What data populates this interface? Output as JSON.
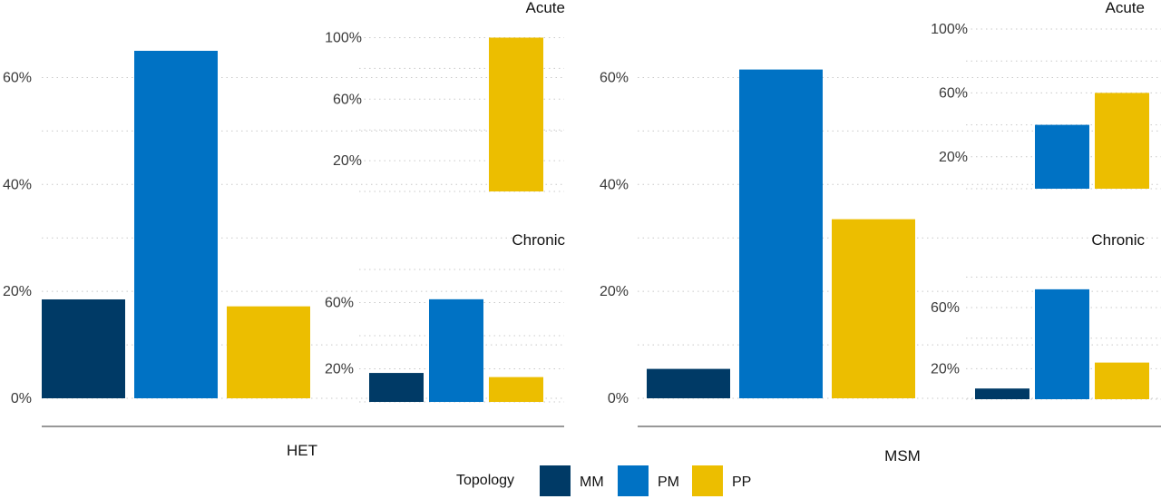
{
  "colors": {
    "MM": "#003a66",
    "PM": "#0072c4",
    "PP": "#ecbe00",
    "grid": "#c9c9c9",
    "axis": "#5a5a5a"
  },
  "legend": {
    "title": "Topology",
    "items": [
      "MM",
      "PM",
      "PP"
    ]
  },
  "groups": [
    "HET",
    "MSM"
  ],
  "chart_data": [
    {
      "type": "bar",
      "group": "HET",
      "panel": "overall",
      "title": "",
      "categories": [
        "MM",
        "PM",
        "PP"
      ],
      "values": [
        18.5,
        65,
        17.2
      ],
      "ylim": [
        0,
        65
      ],
      "yticks": [
        0,
        20,
        40,
        60
      ],
      "tick_labels": [
        "0%",
        "20%",
        "40%",
        "60%"
      ],
      "grid": true
    },
    {
      "type": "bar",
      "group": "HET",
      "panel": "Acute",
      "title": "Acute",
      "categories": [
        "MM",
        "PM",
        "PP"
      ],
      "values": [
        0,
        0,
        100
      ],
      "ylim": [
        0,
        105
      ],
      "yticks": [
        20,
        60,
        100
      ],
      "tick_labels": [
        "20%",
        "60%",
        "100%"
      ],
      "grid": true
    },
    {
      "type": "bar",
      "group": "HET",
      "panel": "Chronic",
      "title": "Chronic",
      "categories": [
        "MM",
        "PM",
        "PP"
      ],
      "values": [
        17.5,
        62,
        15
      ],
      "ylim": [
        0,
        80
      ],
      "yticks": [
        20,
        60
      ],
      "tick_labels": [
        "20%",
        "60%"
      ],
      "grid": true
    },
    {
      "type": "bar",
      "group": "MSM",
      "panel": "overall",
      "title": "",
      "categories": [
        "MM",
        "PM",
        "PP"
      ],
      "values": [
        5.5,
        61.5,
        33.5
      ],
      "ylim": [
        0,
        65
      ],
      "yticks": [
        0,
        20,
        40,
        60
      ],
      "tick_labels": [
        "0%",
        "20%",
        "40%",
        "60%"
      ],
      "grid": true
    },
    {
      "type": "bar",
      "group": "MSM",
      "panel": "Acute",
      "title": "Acute",
      "categories": [
        "MM",
        "PM",
        "PP"
      ],
      "values": [
        0,
        40,
        60
      ],
      "ylim": [
        0,
        100
      ],
      "yticks": [
        20,
        60,
        100
      ],
      "tick_labels": [
        "20%",
        "60%",
        "100%"
      ],
      "grid": true
    },
    {
      "type": "bar",
      "group": "MSM",
      "panel": "Chronic",
      "title": "Chronic",
      "categories": [
        "MM",
        "PM",
        "PP"
      ],
      "values": [
        7,
        72,
        24
      ],
      "ylim": [
        0,
        85
      ],
      "yticks": [
        20,
        60
      ],
      "tick_labels": [
        "20%",
        "60%"
      ],
      "grid": true
    }
  ]
}
